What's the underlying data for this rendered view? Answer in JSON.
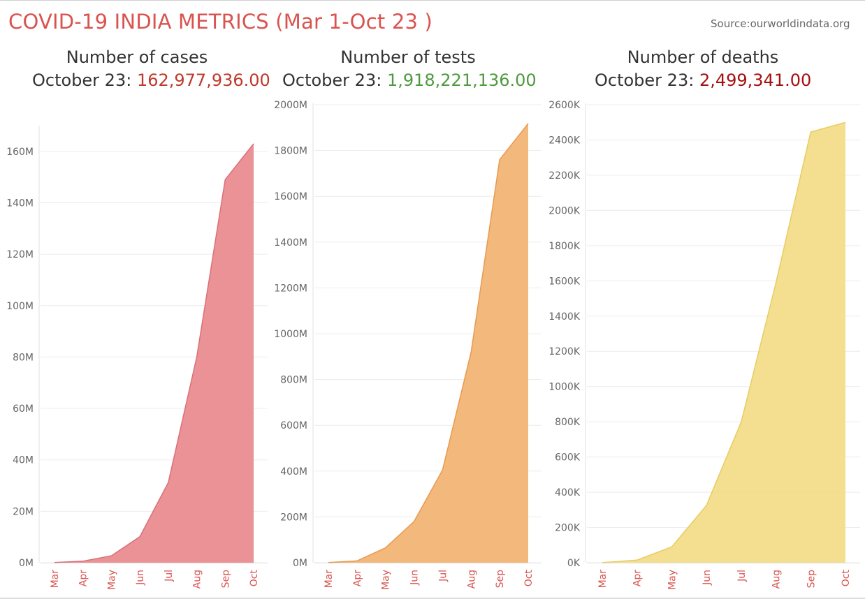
{
  "header": {
    "title": "COVID-19 INDIA  METRICS (Mar 1-Oct 23 )",
    "source": "Source:ourworldindata.org"
  },
  "panels": [
    {
      "title": "Number of cases",
      "value_label": "October 23:",
      "value": "162,977,936.00",
      "value_color": "#c0392b"
    },
    {
      "title": "Number of tests",
      "value_label": "October 23:",
      "value": "1,918,221,136.00",
      "value_color": "#4e9a3f"
    },
    {
      "title": "Number of deaths",
      "value_label": "October 23:",
      "value": "2,499,341.00",
      "value_color": "#a50f0f"
    }
  ],
  "chart_data": [
    {
      "type": "area",
      "title": "Number of cases",
      "x": [
        "Mar",
        "Apr",
        "May",
        "Jun",
        "Jul",
        "Aug",
        "Sep",
        "Oct"
      ],
      "series": [
        {
          "values": [
            0.05,
            0.6,
            2.7,
            10.1,
            31.2,
            80.0,
            149.0,
            163.0
          ]
        }
      ],
      "yticks": [
        0,
        20,
        40,
        60,
        80,
        100,
        120,
        140,
        160
      ],
      "ytick_labels": [
        "0M",
        "20M",
        "40M",
        "60M",
        "80M",
        "100M",
        "120M",
        "140M",
        "160M"
      ],
      "ylim": [
        0,
        170
      ],
      "color": "#e8898c",
      "stroke": "#d9707a"
    },
    {
      "type": "area",
      "title": "Number of tests",
      "x": [
        "Mar",
        "Apr",
        "May",
        "Jun",
        "Jul",
        "Aug",
        "Sep",
        "Oct"
      ],
      "series": [
        {
          "values": [
            0.5,
            8.0,
            65.0,
            180.0,
            405.0,
            920.0,
            1760.0,
            1918.0
          ]
        }
      ],
      "yticks": [
        0,
        200,
        400,
        600,
        800,
        1000,
        1200,
        1400,
        1600,
        1800,
        2000
      ],
      "ytick_labels": [
        "0M",
        "200M",
        "400M",
        "600M",
        "800M",
        "1000M",
        "1200M",
        "1400M",
        "1600M",
        "1800M",
        "2000M"
      ],
      "ylim": [
        0,
        2000
      ],
      "color": "#f2b270",
      "stroke": "#e89a50"
    },
    {
      "type": "area",
      "title": "Number of deaths",
      "x": [
        "Mar",
        "Apr",
        "May",
        "Jun",
        "Jul",
        "Aug",
        "Sep",
        "Oct"
      ],
      "series": [
        {
          "values": [
            0.2,
            15.0,
            90.0,
            325.0,
            800.0,
            1590.0,
            2445.0,
            2499.3
          ]
        }
      ],
      "yticks": [
        0,
        200,
        400,
        600,
        800,
        1000,
        1200,
        1400,
        1600,
        1800,
        2000,
        2200,
        2400,
        2600
      ],
      "ytick_labels": [
        "0K",
        "200K",
        "400K",
        "600K",
        "800K",
        "1000K",
        "1200K",
        "1400K",
        "1600K",
        "1800K",
        "2000K",
        "2200K",
        "2400K",
        "2600K"
      ],
      "ylim": [
        0,
        2600
      ],
      "color": "#f2dc85",
      "stroke": "#e8cc62"
    }
  ]
}
